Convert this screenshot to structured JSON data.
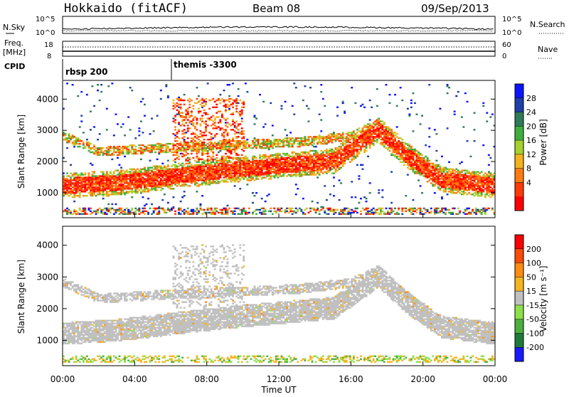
{
  "header": {
    "station": "Hokkaido (fitACF)",
    "beam": "Beam 08",
    "date": "09/Sep/2013"
  },
  "top_panels": {
    "nsky_label": "N.Sky",
    "nsky_ticks": [
      "10^5",
      "10^0"
    ],
    "nsearch_label": "N.Search",
    "nsearch_ticks": [
      "10^5",
      "10^0"
    ],
    "freq_label_line1": "Freq.",
    "freq_label_line2": "[MHz]",
    "freq_ticks": [
      "18",
      "8"
    ],
    "nave_label": "Nave",
    "nave_ticks": [
      "60",
      "0"
    ],
    "cpid_label": "CPID",
    "cpid_entries": [
      {
        "label": "rbsp 200",
        "start_hour": 0
      },
      {
        "label": "themis -3300",
        "start_hour": 6
      }
    ]
  },
  "chart_data": [
    {
      "type": "heatmap",
      "name": "power",
      "xlabel": "",
      "ylabel": "Slant Range [km]",
      "xlim": [
        0,
        24
      ],
      "ylim": [
        200,
        4600
      ],
      "yticks": [
        "1000",
        "2000",
        "3000",
        "4000"
      ],
      "colorbar": {
        "label": "Power [dB]",
        "ticks": [
          "28",
          "24",
          "20",
          "16",
          "12",
          "8",
          "4"
        ],
        "colors": [
          "#0a14ff",
          "#1d3fa8",
          "#2e7a5a",
          "#3fae3f",
          "#a6d22c",
          "#f4b21d",
          "#ff7b12",
          "#ff3a08",
          "#ff0000"
        ]
      },
      "features": [
        {
          "desc": "main ionospheric band",
          "points": [
            [
              0,
              1200
            ],
            [
              3,
              1300
            ],
            [
              6,
              1500
            ],
            [
              9,
              1700
            ],
            [
              12,
              1850
            ],
            [
              15,
              2000
            ],
            [
              17.5,
              3000
            ],
            [
              19,
              2200
            ],
            [
              21,
              1400
            ],
            [
              24,
              1200
            ]
          ]
        },
        {
          "desc": "upper band",
          "points": [
            [
              0,
              2800
            ],
            [
              2,
              2300
            ],
            [
              5,
              2400
            ],
            [
              9,
              2500
            ],
            [
              13,
              2600
            ],
            [
              16,
              2800
            ],
            [
              17.5,
              3200
            ]
          ]
        }
      ]
    },
    {
      "type": "heatmap",
      "name": "velocity",
      "xlabel": "Time UT",
      "ylabel": "Slant Range [km]",
      "xlim": [
        0,
        24
      ],
      "ylim": [
        200,
        4600
      ],
      "yticks": [
        "1000",
        "2000",
        "3000",
        "4000"
      ],
      "xticks": [
        "00:00",
        "04:00",
        "08:00",
        "12:00",
        "16:00",
        "20:00",
        "00:00"
      ],
      "colorbar": {
        "label": "Velocity [m s⁻¹]",
        "ticks": [
          "200",
          "100",
          "50",
          "15",
          "-15",
          "-50",
          "-100",
          "-200"
        ],
        "colors": [
          "#1a1aff",
          "#1f7a3a",
          "#4caf3f",
          "#8be04a",
          "#c0c0c0",
          "#f5b520",
          "#ff8c10",
          "#ff4a08",
          "#ff0000"
        ]
      }
    }
  ]
}
